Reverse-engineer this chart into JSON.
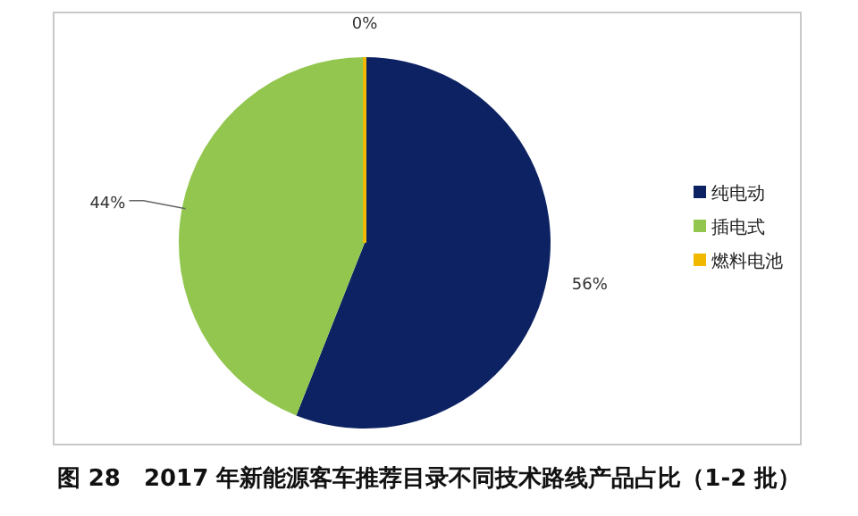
{
  "chart_data": {
    "type": "pie",
    "title": "图 28　2017 年新能源客车推荐目录不同技术路线产品占比（1-2 批）",
    "categories": [
      "纯电动",
      "插电式",
      "燃料电池"
    ],
    "values": [
      56,
      44,
      0
    ],
    "colors": [
      "#0d2262",
      "#92c64e",
      "#f0b800"
    ],
    "value_labels": [
      "56%",
      "44%",
      "0%"
    ],
    "legend": "right"
  }
}
